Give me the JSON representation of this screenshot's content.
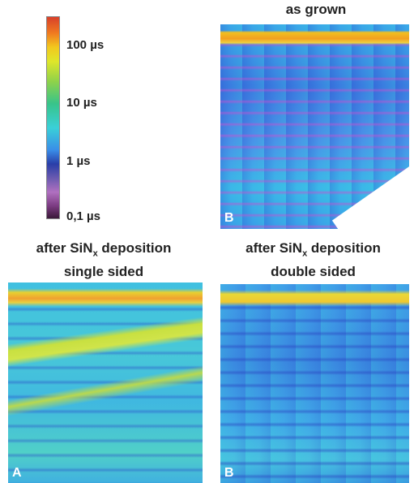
{
  "colorbar": {
    "ticks": [
      "100 µs",
      "10 µs",
      "1 µs",
      "0,1 µs"
    ]
  },
  "panels": [
    {
      "title": [
        "as grown"
      ],
      "letter": "B"
    },
    {
      "title": [
        {
          "before": "after SiN",
          "sub": "x",
          "after": " deposition"
        },
        "single sided"
      ],
      "letter": "A"
    },
    {
      "title": [
        {
          "before": "after SiN",
          "sub": "x",
          "after": " deposition"
        },
        "double sided"
      ],
      "letter": "B"
    }
  ]
}
